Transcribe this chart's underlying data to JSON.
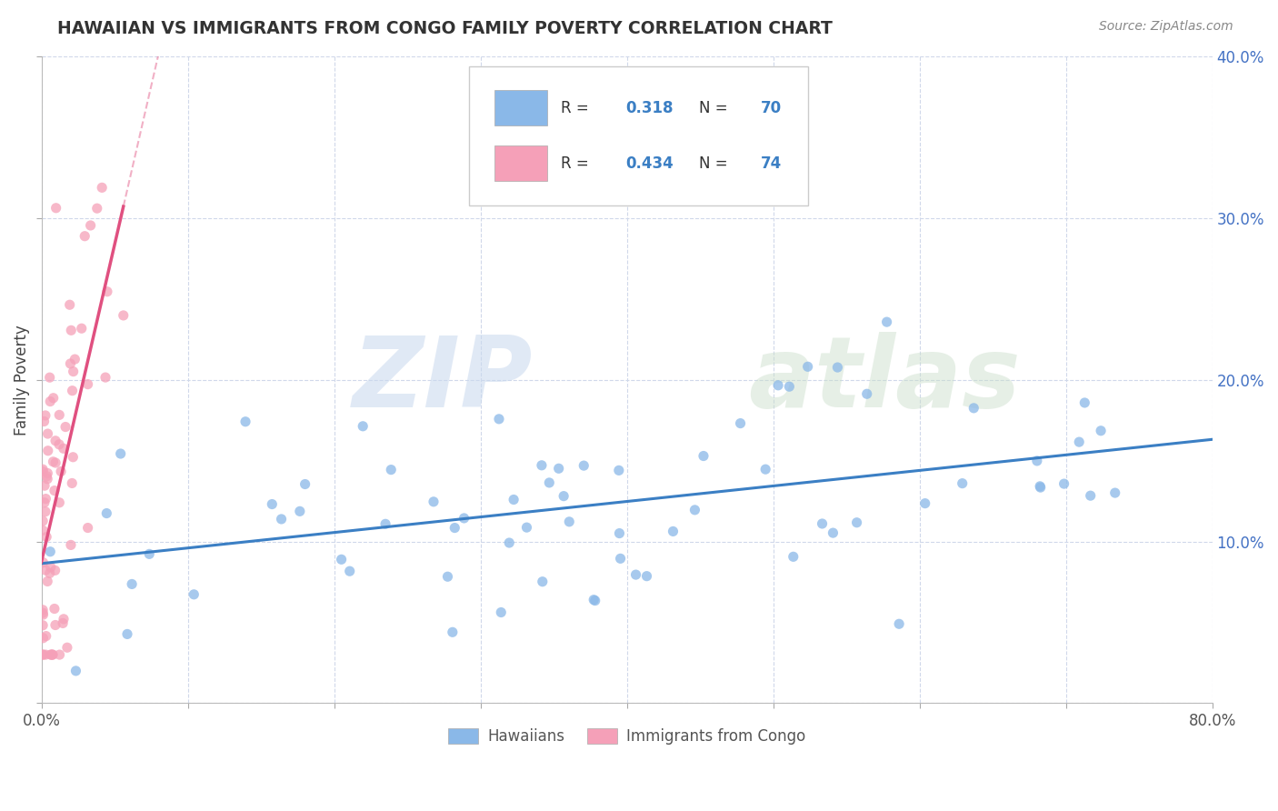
{
  "title": "HAWAIIAN VS IMMIGRANTS FROM CONGO FAMILY POVERTY CORRELATION CHART",
  "source": "Source: ZipAtlas.com",
  "ylabel": "Family Poverty",
  "xlim": [
    0,
    0.8
  ],
  "ylim": [
    0,
    0.4
  ],
  "hawaiian_color": "#8ab8e8",
  "congo_color": "#f5a0b8",
  "hawaiian_line_color": "#3b7fc4",
  "congo_line_color": "#e05080",
  "R_hawaiian": "0.318",
  "N_hawaiian": "70",
  "R_congo": "0.434",
  "N_congo": "74",
  "legend_hawaiians": "Hawaiians",
  "legend_congo": "Immigrants from Congo",
  "watermark_zip": "ZIP",
  "watermark_atlas": "atlas"
}
